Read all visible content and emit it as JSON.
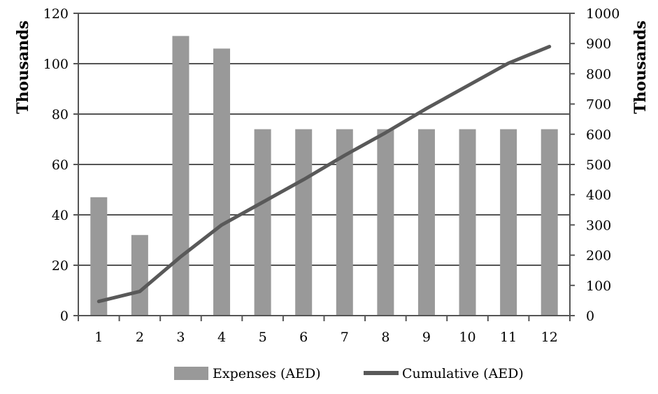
{
  "chart_data": {
    "type": "bar",
    "categories": [
      "1",
      "2",
      "3",
      "4",
      "5",
      "6",
      "7",
      "8",
      "9",
      "10",
      "11",
      "12"
    ],
    "series": [
      {
        "name": "Expenses (AED)",
        "type": "bar",
        "axis": "left",
        "color": "#999999",
        "values": [
          47000,
          32000,
          111000,
          106000,
          74000,
          74000,
          74000,
          74000,
          74000,
          74000,
          74000,
          74000
        ]
      },
      {
        "name": "Cumulative (AED)",
        "type": "line",
        "axis": "right",
        "color": "#595959",
        "values": [
          47000,
          80000,
          195000,
          300000,
          375000,
          450000,
          530000,
          605000,
          685000,
          760000,
          835000,
          890000
        ]
      }
    ],
    "y_left": {
      "label": "Thousands",
      "range": [
        0,
        120000
      ],
      "ticks": [
        0,
        20000,
        40000,
        60000,
        80000,
        100000,
        120000
      ],
      "tick_labels": [
        "0",
        "20",
        "40",
        "60",
        "80",
        "100",
        "120"
      ]
    },
    "y_right": {
      "label": "Thousands",
      "range": [
        0,
        1000000
      ],
      "ticks": [
        0,
        100000,
        200000,
        300000,
        400000,
        500000,
        600000,
        700000,
        800000,
        900000,
        1000000
      ],
      "tick_labels": [
        "0",
        "100",
        "200",
        "300",
        "400",
        "500",
        "600",
        "700",
        "800",
        "900",
        "1000"
      ]
    },
    "grid": true,
    "legend_position": "bottom",
    "gridline_color": "#555555"
  }
}
